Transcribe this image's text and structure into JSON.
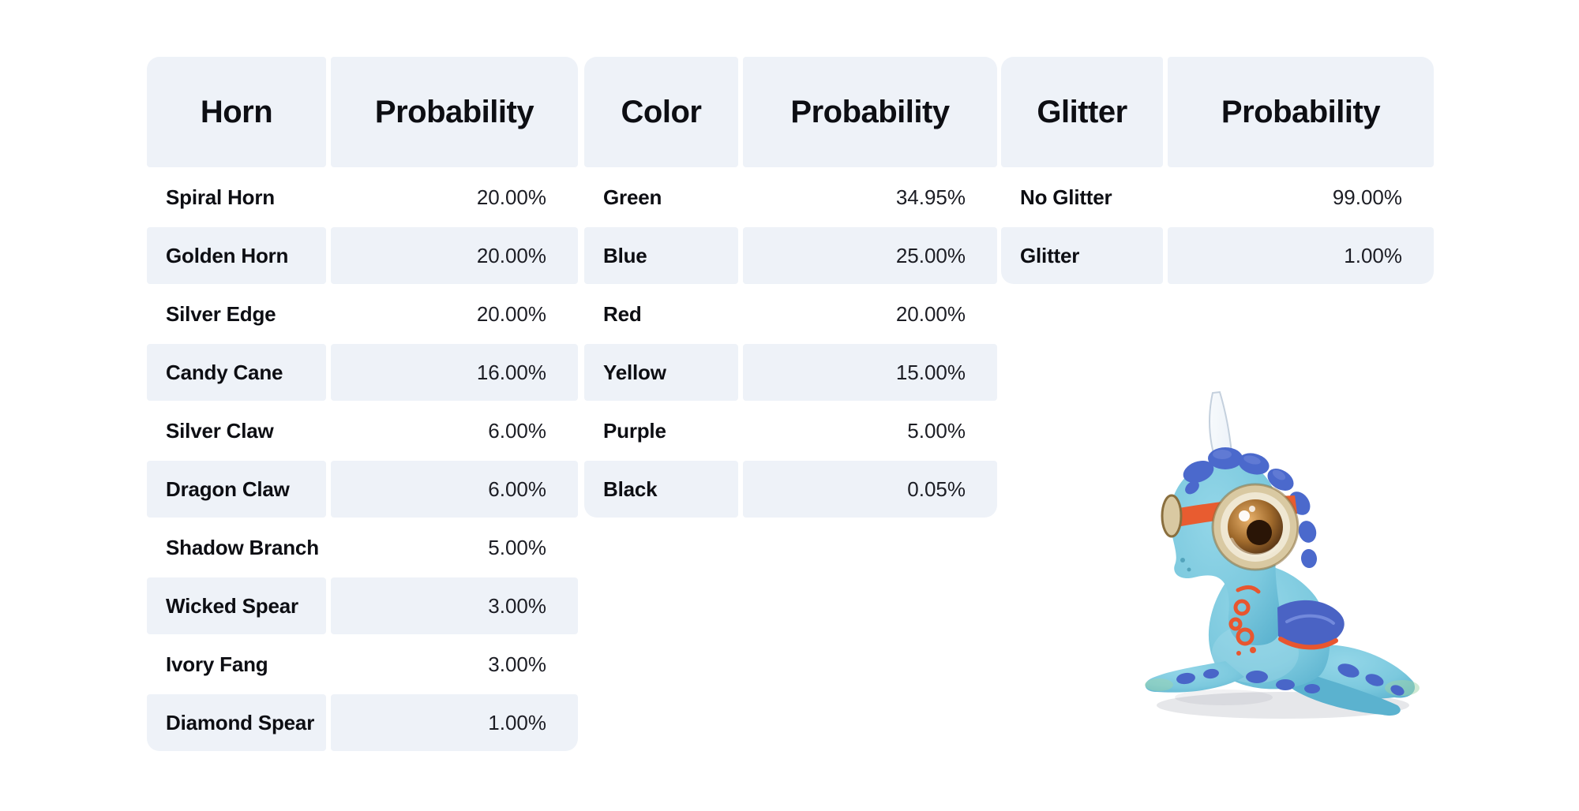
{
  "page": {
    "background": "#ffffff",
    "description": "Three probability tables for pet traits with a clay unicorn-dragon mascot"
  },
  "theme": {
    "cell_bg": "#eef2f8",
    "header_text": "#0d0e13",
    "name_text": "#0d0e13",
    "value_text": "#1c1d24"
  },
  "tables": [
    {
      "id": "horn",
      "title_column": "Horn",
      "value_column": "Probability",
      "rows": [
        {
          "label": "Spiral Horn",
          "value": "20.00%"
        },
        {
          "label": "Golden Horn",
          "value": "20.00%"
        },
        {
          "label": "Silver Edge",
          "value": "20.00%"
        },
        {
          "label": "Candy Cane",
          "value": "16.00%"
        },
        {
          "label": "Silver Claw",
          "value": "6.00%"
        },
        {
          "label": "Dragon Claw",
          "value": "6.00%"
        },
        {
          "label": "Shadow Branch",
          "value": "5.00%"
        },
        {
          "label": "Wicked Spear",
          "value": "3.00%"
        },
        {
          "label": "Ivory Fang",
          "value": "3.00%"
        },
        {
          "label": "Diamond Spear",
          "value": "1.00%"
        }
      ]
    },
    {
      "id": "color",
      "title_column": "Color",
      "value_column": "Probability",
      "rows": [
        {
          "label": "Green",
          "value": "34.95%"
        },
        {
          "label": "Blue",
          "value": "25.00%"
        },
        {
          "label": "Red",
          "value": "20.00%"
        },
        {
          "label": "Yellow",
          "value": "15.00%"
        },
        {
          "label": "Purple",
          "value": "5.00%"
        },
        {
          "label": "Black",
          "value": "0.05%"
        }
      ]
    },
    {
      "id": "glitter",
      "title_column": "Glitter",
      "value_column": "Probability",
      "rows": [
        {
          "label": "No Glitter",
          "value": "99.00%"
        },
        {
          "label": "Glitter",
          "value": "1.00%"
        }
      ]
    }
  ],
  "mascot": {
    "subject": "claymation baby unicorn-dragon with goggle eyes, blue mane and white horn",
    "palette": {
      "body": "#7cc9de",
      "bodydeep": "#5bb2cf",
      "bellyhi": "#aadcec",
      "mane": "#4b69cc",
      "manelight": "#7289dc",
      "horn": "#eef3f9",
      "hornedge": "#c4d0dd",
      "strap": "#e85c30",
      "rim": "#d9c9a2",
      "rimdeep": "#8a6f3e",
      "lens": "#efe7d2",
      "irisdark": "#2a1506",
      "wing": "#4a63c4",
      "spot": "#4966c8",
      "accent": "#e8562f",
      "tip": "#9ed4a8",
      "shadow": "#0a1430"
    }
  }
}
